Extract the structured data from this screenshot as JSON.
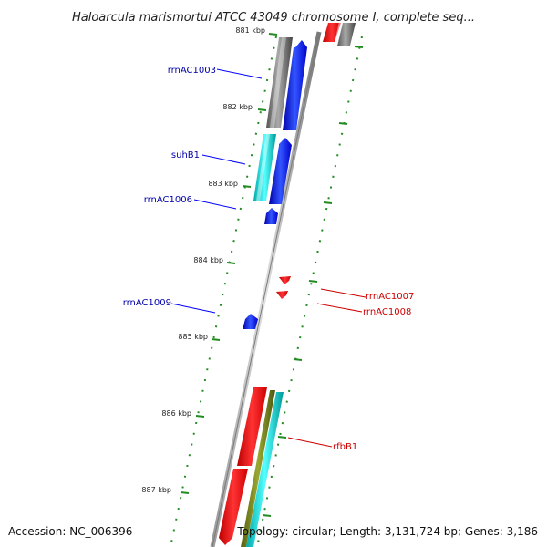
{
  "title": "Haloarcula marismortui ATCC 43049 chromosome I, complete seq...",
  "footer": {
    "accession": "Accession: NC_006396",
    "summary": "Topology: circular; Length: 3,131,724 bp; Genes: 3,186"
  },
  "ticks": [
    "881 kbp",
    "882 kbp",
    "883 kbp",
    "884 kbp",
    "885 kbp",
    "886 kbp",
    "887 kbp"
  ],
  "labels": {
    "left": [
      "rrnAC1003",
      "suhB1",
      "rrnAC1006",
      "rrnAC1009"
    ],
    "right": [
      "rrnAC1007",
      "rrnAC1008",
      "rfbB1"
    ]
  },
  "colors": {
    "plus_strand_label": "#0000aa",
    "minus_strand_label": "#cc0000",
    "gene_blue": "#0000ff",
    "gene_red": "#ff0000",
    "rRNA_gray": "#666666",
    "cyan": "#00cccc",
    "olive": "#6b7a10",
    "tick_green": "#228b22",
    "backbone": "#888888"
  }
}
